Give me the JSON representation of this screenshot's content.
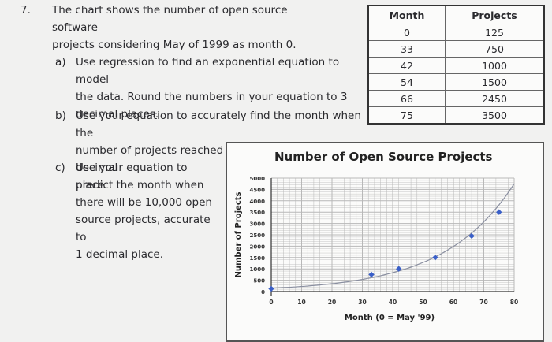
{
  "question": {
    "number": "7.",
    "stem_lines": [
      "The chart shows the number of open source software",
      "projects considering May of 1999 as month 0."
    ]
  },
  "parts": [
    {
      "label": "a)",
      "lines": [
        "Use regression to find an exponential equation to model",
        "the data. Round the numbers in your equation to 3",
        "decimal places."
      ]
    },
    {
      "label": "b)",
      "lines": [
        "Use your equation to accurately find the month when the",
        "number of projects reached 2000, accurate to 1 decimal",
        "place."
      ]
    },
    {
      "label": "c)",
      "lines": [
        "Use your equation to",
        "predict the month when",
        "there will be 10,000 open",
        "source projects, accurate to",
        "1 decimal place."
      ]
    }
  ],
  "table": {
    "headers": [
      "Month",
      "Projects"
    ],
    "rows": [
      [
        "0",
        "125"
      ],
      [
        "33",
        "750"
      ],
      [
        "42",
        "1000"
      ],
      [
        "54",
        "1500"
      ],
      [
        "66",
        "2450"
      ],
      [
        "75",
        "3500"
      ]
    ]
  },
  "chart_data": {
    "type": "scatter",
    "title": "Number of Open Source Projects",
    "xlabel": "Month (0 = May '99)",
    "ylabel": "Number of Projects",
    "x_ticks": [
      "0",
      "10",
      "20",
      "30",
      "40",
      "50",
      "60",
      "70",
      "80"
    ],
    "y_ticks": [
      "0",
      "500",
      "1000",
      "1500",
      "2000",
      "2500",
      "3000",
      "3500",
      "4000",
      "4500",
      "5000"
    ],
    "xlim": [
      0,
      80
    ],
    "ylim": [
      0,
      5000
    ],
    "grid": true,
    "points": [
      [
        0,
        125
      ],
      [
        33,
        750
      ],
      [
        42,
        1000
      ],
      [
        54,
        1500
      ],
      [
        66,
        2450
      ],
      [
        75,
        3500
      ]
    ],
    "trendline": "exponential",
    "colors": {
      "points": "#3a5fc8",
      "trend": "#8a8fa0",
      "grid": "#b8b8b8"
    }
  }
}
